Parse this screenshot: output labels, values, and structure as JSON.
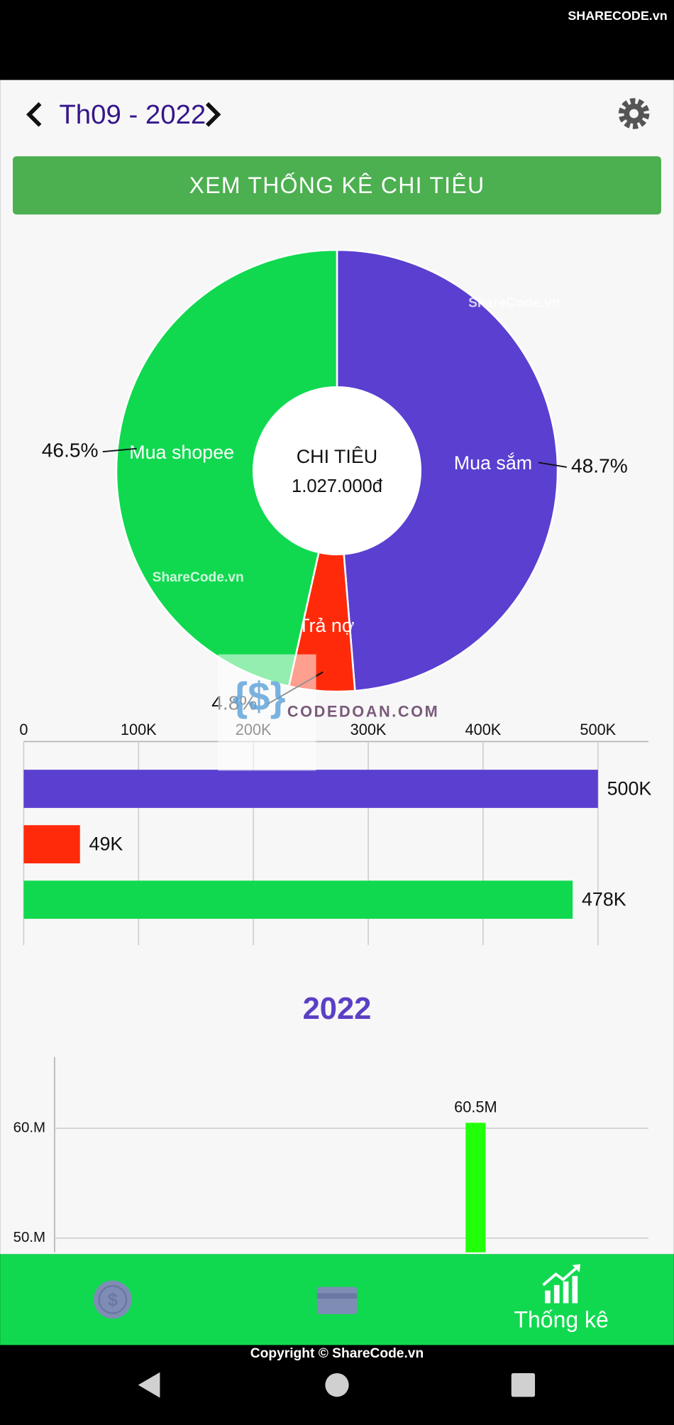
{
  "header": {
    "month": "Th09 - 2022"
  },
  "button": "XEM THỐNG KÊ CHI TIÊU",
  "chart_data": [
    {
      "type": "pie",
      "donut": true,
      "categories": [
        "Mua sắm",
        "Trả nợ",
        "Mua shopee"
      ],
      "values": [
        48.7,
        4.8,
        46.5
      ],
      "value_labels": [
        "48.7%",
        "4.8%",
        "46.5%"
      ],
      "colors": [
        "#5b3fd0",
        "#ff2a0a",
        "#10d94f"
      ],
      "center_title": "CHI TIÊU",
      "center_value": "1.027.000đ"
    },
    {
      "type": "bar",
      "orientation": "horizontal",
      "categories": [
        null,
        null,
        null
      ],
      "values": [
        500000,
        49000,
        478000
      ],
      "value_labels": [
        "500K",
        "49K",
        "478K"
      ],
      "colors": [
        "#5b3fd0",
        "#ff2a0a",
        "#10d94f"
      ],
      "xlim": [
        0,
        544000
      ],
      "xticks": [
        0,
        {
          "value": 100000,
          "label": "100K"
        },
        {
          "value": 200000,
          "label": "200K"
        },
        {
          "value": 300000,
          "label": "300K"
        },
        {
          "value": 400000,
          "label": "400K"
        },
        {
          "value": 500000,
          "label": "500K"
        }
      ],
      "grid": true
    },
    {
      "type": "bar",
      "orientation": "vertical",
      "title": "2022",
      "categories": [
        null,
        null,
        null,
        null,
        null,
        null,
        null,
        null,
        null,
        null,
        null,
        null
      ],
      "values": [
        null,
        null,
        null,
        null,
        null,
        null,
        null,
        null,
        60500000,
        null,
        null,
        null
      ],
      "value_labels": [
        null,
        null,
        null,
        null,
        null,
        null,
        null,
        null,
        "60.5M",
        null,
        null,
        null
      ],
      "color": "#22ff0a",
      "ylim": [
        48700000,
        66500000
      ],
      "yticks": [
        {
          "value": 50000000,
          "label": "50.M"
        },
        {
          "value": 60000000,
          "label": "60.M"
        }
      ],
      "grid": true
    }
  ],
  "nav": {
    "active_label": "Thống kê"
  },
  "footer": {
    "copyright": "Copyright © ShareCode.vn"
  },
  "watermarks": [
    "SHARECODE.vn",
    "ShareCode.vn",
    "ShareCode.vn",
    "CODEDOAN.COM"
  ]
}
